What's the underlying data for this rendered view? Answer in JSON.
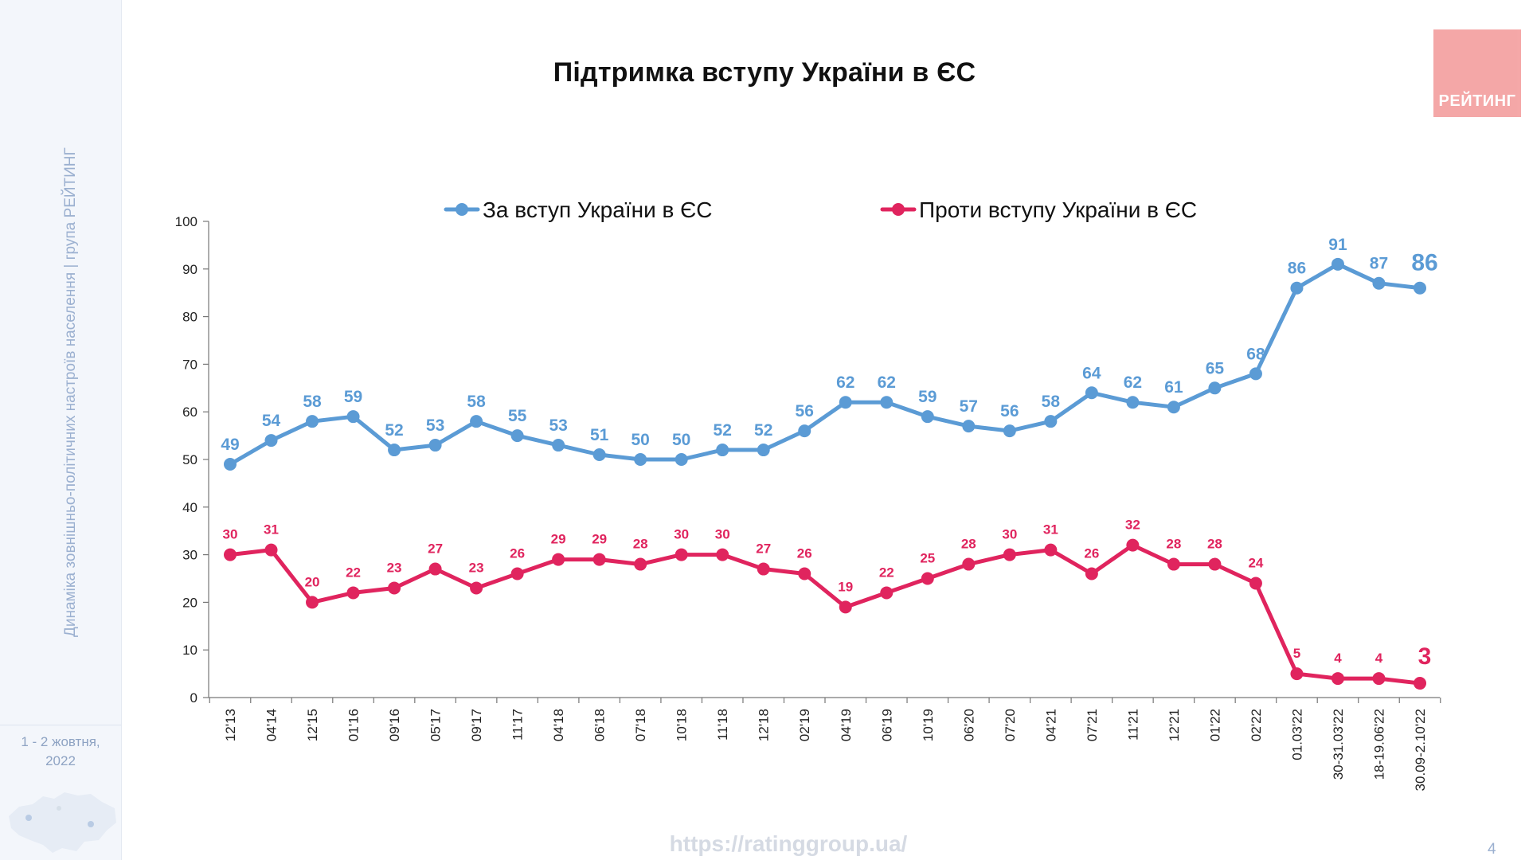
{
  "sidebar": {
    "vertical_text": "Динаміка зовнішньо-політичних настроїв населення | група РЕЙТИНГ",
    "date_line1": "1 - 2 жовтня,",
    "date_line2": "2022"
  },
  "logo": {
    "text": "РЕЙТИНГ"
  },
  "footer": {
    "url": "https://ratinggroup.ua/",
    "page_number": "4"
  },
  "colors": {
    "for": "#5b9bd5",
    "against": "#e0245e",
    "axis": "#777777",
    "text": "#111111"
  },
  "chart_data": {
    "type": "line",
    "title": "Підтримка вступу України в ЄС",
    "xlabel": "",
    "ylabel": "",
    "ylim": [
      0,
      100
    ],
    "yticks": [
      0,
      10,
      20,
      30,
      40,
      50,
      60,
      70,
      80,
      90,
      100
    ],
    "grid": false,
    "legend_position": "top",
    "categories": [
      "12'13",
      "04'14",
      "12'15",
      "01'16",
      "09'16",
      "05'17",
      "09'17",
      "11'17",
      "04'18",
      "06'18",
      "07'18",
      "10'18",
      "11'18",
      "12'18",
      "02'19",
      "04'19",
      "06'19",
      "10'19",
      "06'20",
      "07'20",
      "04'21",
      "07'21",
      "11'21",
      "12'21",
      "01'22",
      "02'22",
      "01.03'22",
      "30-31.03'22",
      "18-19.06'22",
      "30.09-2.10'22"
    ],
    "series": [
      {
        "name": "За вступ України в ЄС",
        "color": "#5b9bd5",
        "values": [
          49,
          54,
          58,
          59,
          52,
          53,
          58,
          55,
          53,
          51,
          50,
          50,
          52,
          52,
          56,
          62,
          62,
          59,
          57,
          56,
          58,
          64,
          62,
          61,
          65,
          68,
          86,
          91,
          87,
          86
        ]
      },
      {
        "name": "Проти вступу України в ЄС",
        "color": "#e0245e",
        "values": [
          30,
          31,
          20,
          22,
          23,
          27,
          23,
          26,
          29,
          29,
          28,
          30,
          30,
          27,
          26,
          19,
          22,
          25,
          28,
          30,
          31,
          26,
          32,
          28,
          28,
          24,
          5,
          4,
          4,
          3
        ]
      }
    ]
  }
}
